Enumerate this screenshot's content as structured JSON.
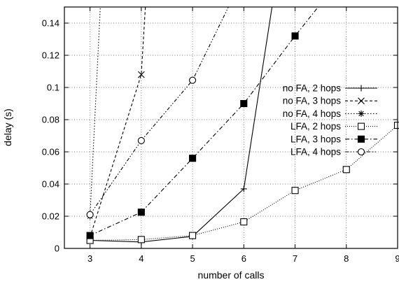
{
  "chart_data": {
    "type": "line",
    "title": "",
    "xlabel": "number of calls",
    "ylabel": "delay (s)",
    "xlim": [
      2.5,
      9
    ],
    "ylim": [
      0,
      0.15
    ],
    "xticks": [
      "3",
      "4",
      "5",
      "6",
      "7",
      "8",
      "9"
    ],
    "yticks": [
      "0",
      "0.02",
      "0.04",
      "0.06",
      "0.08",
      "0.1",
      "0.12",
      "0.14"
    ],
    "grid": true,
    "legend_position": "right-center",
    "series": [
      {
        "name": "no FA, 2 hops",
        "marker": "plus",
        "dash": "solid",
        "x": [
          3,
          4,
          5,
          6,
          6.55
        ],
        "y": [
          0.005,
          0.004,
          0.0075,
          0.037,
          0.15
        ]
      },
      {
        "name": "no FA, 3 hops",
        "marker": "cross",
        "dash": "dashed",
        "x": [
          3,
          4,
          4.08
        ],
        "y": [
          0.007,
          0.108,
          0.15
        ]
      },
      {
        "name": "no FA, 4 hops",
        "marker": "star",
        "dash": "dotted",
        "x": [
          3,
          3.2
        ],
        "y": [
          0.02,
          0.15
        ]
      },
      {
        "name": "LFA, 2 hops",
        "marker": "square-open",
        "dash": "fine-dotted",
        "x": [
          3,
          4,
          5,
          6,
          7,
          8,
          9
        ],
        "y": [
          0.005,
          0.0055,
          0.008,
          0.0165,
          0.036,
          0.049,
          0.0765
        ]
      },
      {
        "name": "LFA, 3 hops",
        "marker": "square-filled",
        "dash": "dash-dot",
        "x": [
          3,
          4,
          5,
          6,
          7,
          7.45
        ],
        "y": [
          0.008,
          0.0225,
          0.056,
          0.09,
          0.132,
          0.15
        ]
      },
      {
        "name": "LFA, 4 hops",
        "marker": "circle-open",
        "dash": "dash-dot-dot",
        "x": [
          3,
          4,
          5,
          5.7
        ],
        "y": [
          0.021,
          0.067,
          0.1045,
          0.15
        ]
      }
    ]
  }
}
